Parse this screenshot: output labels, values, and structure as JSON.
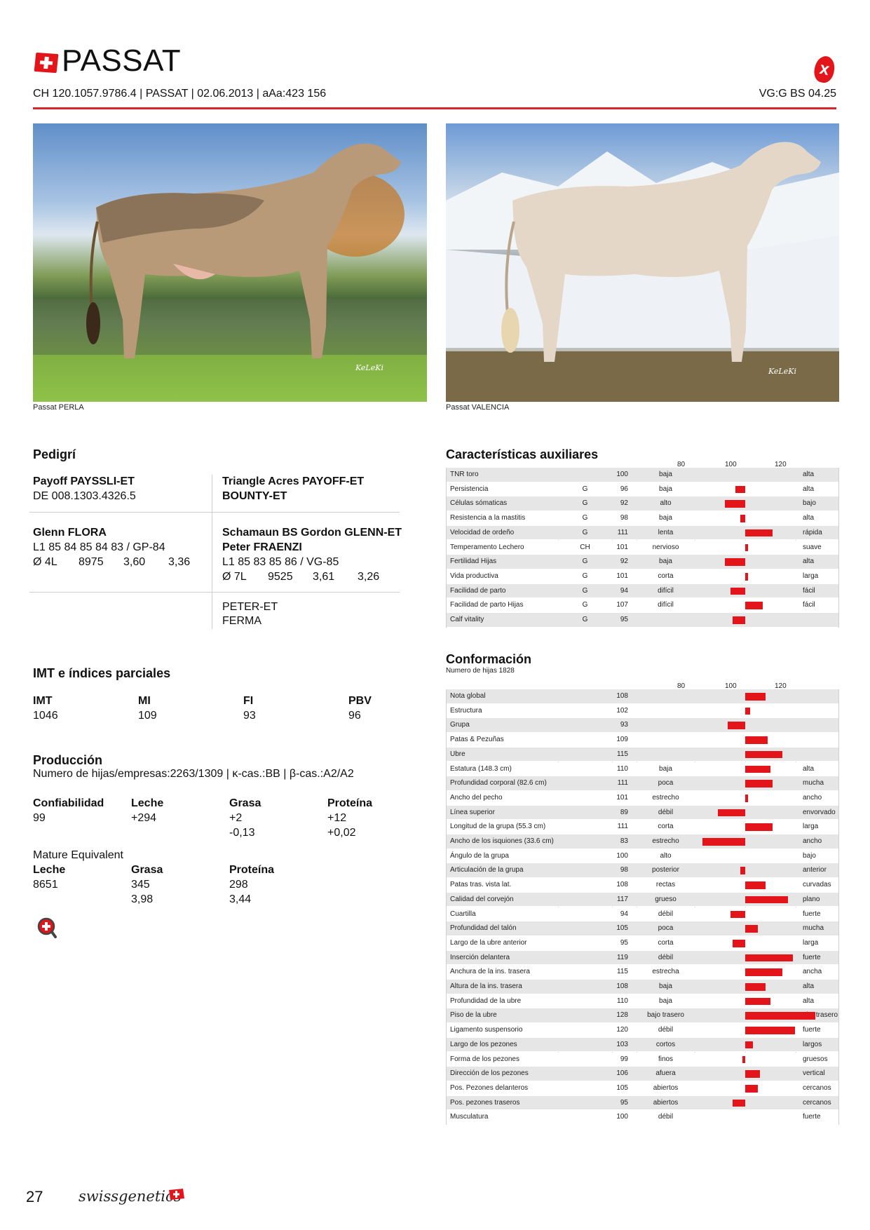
{
  "header": {
    "title": "PASSAT",
    "id_line": "CH 120.1057.9786.4 | PASSAT | 02.06.2013 | aAa:423 156",
    "vg_line": "VG:G BS 04.25"
  },
  "photos": [
    {
      "caption": "Passat PERLA",
      "watermark": "KeLeKi"
    },
    {
      "caption": "Passat VALENCIA",
      "watermark": "KeLeKi"
    }
  ],
  "pedigree": {
    "heading": "Pedigrí",
    "sire_name": "Payoff PAYSSLI-ET",
    "sire_id": "DE 008.1303.4326.5",
    "sire_sire": "Triangle Acres PAYOFF-ET",
    "sire_dam": "BOUNTY-ET",
    "dam_name": "Glenn FLORA",
    "dam_linear": "L1 85 84 85 84 83 / GP-84",
    "dam_perf": [
      "Ø 4L",
      "8975",
      "3,60",
      "3,36"
    ],
    "dam_sire": "Schamaun BS Gordon GLENN-ET",
    "dam_dam": "Peter FRAENZI",
    "dam_dam_linear": "L1 85 83 85 86 / VG-85",
    "dam_dam_perf": [
      "Ø 7L",
      "9525",
      "3,61",
      "3,26"
    ],
    "ddd_sire": "PETER-ET",
    "ddd_dam": "FERMA"
  },
  "imt": {
    "heading": "IMT e índices parciales",
    "labels": [
      "IMT",
      "MI",
      "FI",
      "PBV"
    ],
    "values": [
      "1046",
      "109",
      "93",
      "96"
    ]
  },
  "produccion": {
    "heading": "Producción",
    "daughters_line": "Numero de hijas/empresas:2263/1309 | κ-cas.:BB | β-cas.:A2/A2",
    "labels": [
      "Confiabilidad",
      "Leche",
      "Grasa",
      "Proteína"
    ],
    "row1": [
      "99",
      "+294",
      "+2",
      "+12"
    ],
    "row2": [
      "",
      "",
      "-0,13",
      "+0,02"
    ],
    "me_title": "Mature Equivalent",
    "me_labels": [
      "Leche",
      "Grasa",
      "Proteína"
    ],
    "me_row1": [
      "8651",
      "345",
      "298"
    ],
    "me_row2": [
      "",
      "3,98",
      "3,44"
    ]
  },
  "aux": {
    "heading": "Características auxiliares",
    "scale": [
      "80",
      "100",
      "120"
    ],
    "rows": [
      {
        "name": "TNR toro",
        "g": "",
        "val": 100,
        "lo": "baja",
        "hi": "alta"
      },
      {
        "name": "Persistencia",
        "g": "G",
        "val": 96,
        "lo": "baja",
        "hi": "alta"
      },
      {
        "name": "Células sómaticas",
        "g": "G",
        "val": 92,
        "lo": "alto",
        "hi": "bajo"
      },
      {
        "name": "Resistencia a la mastitis",
        "g": "G",
        "val": 98,
        "lo": "baja",
        "hi": "alta"
      },
      {
        "name": "Velocidad de ordeño",
        "g": "G",
        "val": 111,
        "lo": "lenta",
        "hi": "rápida"
      },
      {
        "name": "Temperamento Lechero",
        "g": "CH",
        "val": 101,
        "lo": "nervioso",
        "hi": "suave"
      },
      {
        "name": "Fertilidad Hijas",
        "g": "G",
        "val": 92,
        "lo": "baja",
        "hi": "alta"
      },
      {
        "name": "Vida productiva",
        "g": "G",
        "val": 101,
        "lo": "corta",
        "hi": "larga"
      },
      {
        "name": "Facilidad de parto",
        "g": "G",
        "val": 94,
        "lo": "difícil",
        "hi": "fácil"
      },
      {
        "name": "Facilidad de parto Hijas",
        "g": "G",
        "val": 107,
        "lo": "difícil",
        "hi": "fácil"
      },
      {
        "name": "Calf vitality",
        "g": "G",
        "val": 95,
        "lo": "",
        "hi": ""
      }
    ]
  },
  "conf": {
    "heading": "Conformación",
    "subheading": "Numero de hijas 1828",
    "scale": [
      "80",
      "100",
      "120"
    ],
    "rows": [
      {
        "name": "Nota global",
        "val": 108,
        "lo": "",
        "hi": ""
      },
      {
        "name": "Estructura",
        "val": 102,
        "lo": "",
        "hi": ""
      },
      {
        "name": "Grupa",
        "val": 93,
        "lo": "",
        "hi": ""
      },
      {
        "name": "Patas & Pezuñas",
        "val": 109,
        "lo": "",
        "hi": ""
      },
      {
        "name": "Ubre",
        "val": 115,
        "lo": "",
        "hi": ""
      },
      {
        "name": "Estatura (148.3 cm)",
        "val": 110,
        "lo": "baja",
        "hi": "alta"
      },
      {
        "name": "Profundidad corporal (82.6 cm)",
        "val": 111,
        "lo": "poca",
        "hi": "mucha"
      },
      {
        "name": "Ancho del pecho",
        "val": 101,
        "lo": "estrecho",
        "hi": "ancho"
      },
      {
        "name": "Línea superior",
        "val": 89,
        "lo": "débil",
        "hi": "envorvado"
      },
      {
        "name": "Longitud de la grupa (55.3 cm)",
        "val": 111,
        "lo": "corta",
        "hi": "larga"
      },
      {
        "name": "Ancho de los isquiones (33.6 cm)",
        "val": 83,
        "lo": "estrecho",
        "hi": "ancho"
      },
      {
        "name": "Ángulo de la grupa",
        "val": 100,
        "lo": "alto",
        "hi": "bajo"
      },
      {
        "name": "Articulación de la grupa",
        "val": 98,
        "lo": "posterior",
        "hi": "anterior"
      },
      {
        "name": "Patas tras. vista lat.",
        "val": 108,
        "lo": "rectas",
        "hi": "curvadas"
      },
      {
        "name": "Calidad del corvejón",
        "val": 117,
        "lo": "grueso",
        "hi": "plano"
      },
      {
        "name": "Cuartilla",
        "val": 94,
        "lo": "débil",
        "hi": "fuerte"
      },
      {
        "name": "Profundidad del talón",
        "val": 105,
        "lo": "poca",
        "hi": "mucha"
      },
      {
        "name": "Largo de la ubre anterior",
        "val": 95,
        "lo": "corta",
        "hi": "larga"
      },
      {
        "name": "Inserción delantera",
        "val": 119,
        "lo": "débil",
        "hi": "fuerte"
      },
      {
        "name": "Anchura de la ins. trasera",
        "val": 115,
        "lo": "estrecha",
        "hi": "ancha"
      },
      {
        "name": "Altura de la ins. trasera",
        "val": 108,
        "lo": "baja",
        "hi": "alta"
      },
      {
        "name": "Profundidad de la ubre",
        "val": 110,
        "lo": "baja",
        "hi": "alta"
      },
      {
        "name": "Piso de la ubre",
        "val": 128,
        "lo": "bajo trasero",
        "hi": "alto trasero"
      },
      {
        "name": "Ligamento suspensorio",
        "val": 120,
        "lo": "débil",
        "hi": "fuerte"
      },
      {
        "name": "Largo de los pezones",
        "val": 103,
        "lo": "cortos",
        "hi": "largos"
      },
      {
        "name": "Forma de los pezones",
        "val": 99,
        "lo": "finos",
        "hi": "gruesos"
      },
      {
        "name": "Dirección de los pezones",
        "val": 106,
        "lo": "afuera",
        "hi": "vertical"
      },
      {
        "name": "Pos. Pezones delanteros",
        "val": 105,
        "lo": "abiertos",
        "hi": "cercanos"
      },
      {
        "name": "Pos. pezones traseros",
        "val": 95,
        "lo": "abiertos",
        "hi": "cercanos"
      },
      {
        "name": "Musculatura",
        "val": 100,
        "lo": "débil",
        "hi": "fuerte"
      }
    ]
  },
  "footer": {
    "page_number": "27",
    "brand": "swissgenetics"
  },
  "colors": {
    "accent": "#e3151a",
    "rule": "#d9262e",
    "stripe": "#e6e6e6"
  }
}
